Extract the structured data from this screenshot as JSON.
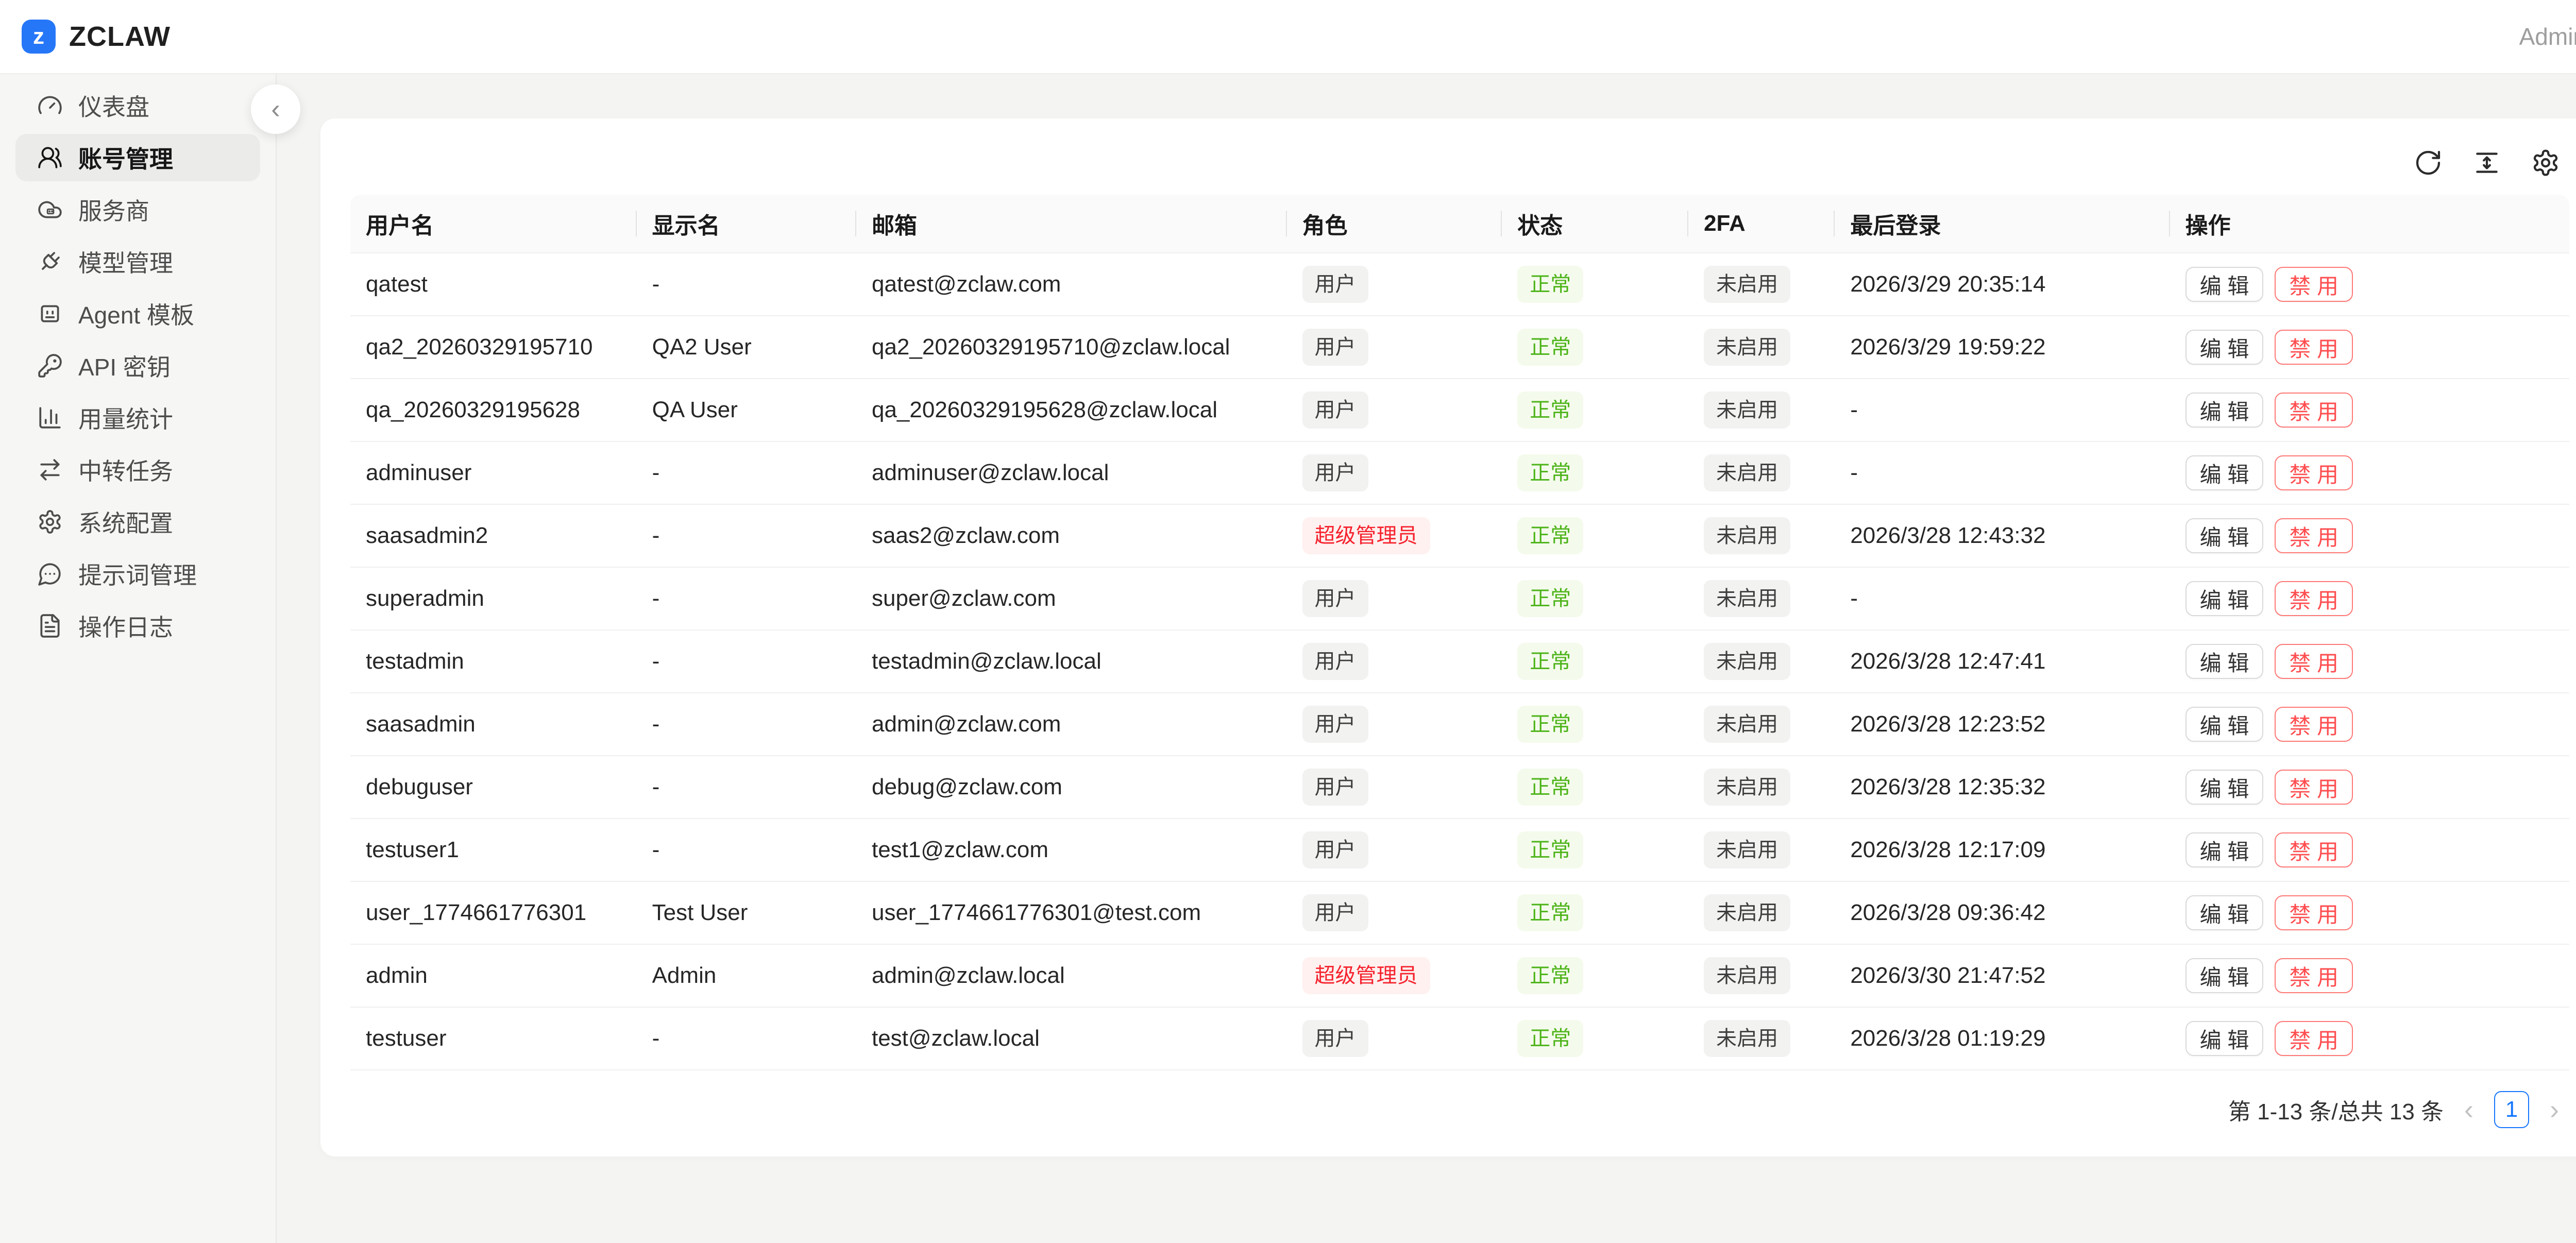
{
  "topbar": {
    "logo_letter": "z",
    "brand": "ZCLAW",
    "user_label": "Admin"
  },
  "sidebar": {
    "collapse_icon": "‹",
    "items": [
      {
        "label": "仪表盘",
        "icon": "gauge-icon",
        "active": false
      },
      {
        "label": "账号管理",
        "icon": "users-icon",
        "active": true
      },
      {
        "label": "服务商",
        "icon": "cloud-icon",
        "active": false
      },
      {
        "label": "模型管理",
        "icon": "plug-icon",
        "active": false
      },
      {
        "label": "Agent 模板",
        "icon": "bot-icon",
        "active": false
      },
      {
        "label": "API 密钥",
        "icon": "key-icon",
        "active": false
      },
      {
        "label": "用量统计",
        "icon": "chart-icon",
        "active": false
      },
      {
        "label": "中转任务",
        "icon": "swap-icon",
        "active": false
      },
      {
        "label": "系统配置",
        "icon": "gear-icon",
        "active": false
      },
      {
        "label": "提示词管理",
        "icon": "message-icon",
        "active": false
      },
      {
        "label": "操作日志",
        "icon": "file-text-icon",
        "active": false
      }
    ]
  },
  "toolbar": {
    "icons": [
      "refresh-icon",
      "row-height-icon",
      "settings-icon"
    ]
  },
  "table": {
    "columns": [
      "用户名",
      "显示名",
      "邮箱",
      "角色",
      "状态",
      "2FA",
      "最后登录",
      "操作"
    ],
    "actions": {
      "edit": "编 辑",
      "disable": "禁 用"
    },
    "rows": [
      {
        "username": "qatest",
        "display_name": "-",
        "email": "qatest@zclaw.com",
        "role": "用户",
        "role_variant": "default",
        "status": "正常",
        "twofa": "未启用",
        "last_login": "2026/3/29 20:35:14"
      },
      {
        "username": "qa2_20260329195710",
        "display_name": "QA2 User",
        "email": "qa2_20260329195710@zclaw.local",
        "role": "用户",
        "role_variant": "default",
        "status": "正常",
        "twofa": "未启用",
        "last_login": "2026/3/29 19:59:22"
      },
      {
        "username": "qa_20260329195628",
        "display_name": "QA User",
        "email": "qa_20260329195628@zclaw.local",
        "role": "用户",
        "role_variant": "default",
        "status": "正常",
        "twofa": "未启用",
        "last_login": "-"
      },
      {
        "username": "adminuser",
        "display_name": "-",
        "email": "adminuser@zclaw.local",
        "role": "用户",
        "role_variant": "default",
        "status": "正常",
        "twofa": "未启用",
        "last_login": "-"
      },
      {
        "username": "saasadmin2",
        "display_name": "-",
        "email": "saas2@zclaw.com",
        "role": "超级管理员",
        "role_variant": "danger",
        "status": "正常",
        "twofa": "未启用",
        "last_login": "2026/3/28 12:43:32"
      },
      {
        "username": "superadmin",
        "display_name": "-",
        "email": "super@zclaw.com",
        "role": "用户",
        "role_variant": "default",
        "status": "正常",
        "twofa": "未启用",
        "last_login": "-"
      },
      {
        "username": "testadmin",
        "display_name": "-",
        "email": "testadmin@zclaw.local",
        "role": "用户",
        "role_variant": "default",
        "status": "正常",
        "twofa": "未启用",
        "last_login": "2026/3/28 12:47:41"
      },
      {
        "username": "saasadmin",
        "display_name": "-",
        "email": "admin@zclaw.com",
        "role": "用户",
        "role_variant": "default",
        "status": "正常",
        "twofa": "未启用",
        "last_login": "2026/3/28 12:23:52"
      },
      {
        "username": "debuguser",
        "display_name": "-",
        "email": "debug@zclaw.com",
        "role": "用户",
        "role_variant": "default",
        "status": "正常",
        "twofa": "未启用",
        "last_login": "2026/3/28 12:35:32"
      },
      {
        "username": "testuser1",
        "display_name": "-",
        "email": "test1@zclaw.com",
        "role": "用户",
        "role_variant": "default",
        "status": "正常",
        "twofa": "未启用",
        "last_login": "2026/3/28 12:17:09"
      },
      {
        "username": "user_1774661776301",
        "display_name": "Test User",
        "email": "user_1774661776301@test.com",
        "role": "用户",
        "role_variant": "default",
        "status": "正常",
        "twofa": "未启用",
        "last_login": "2026/3/28 09:36:42"
      },
      {
        "username": "admin",
        "display_name": "Admin",
        "email": "admin@zclaw.local",
        "role": "超级管理员",
        "role_variant": "danger",
        "status": "正常",
        "twofa": "未启用",
        "last_login": "2026/3/30 21:47:52"
      },
      {
        "username": "testuser",
        "display_name": "-",
        "email": "test@zclaw.local",
        "role": "用户",
        "role_variant": "default",
        "status": "正常",
        "twofa": "未启用",
        "last_login": "2026/3/28 01:19:29"
      }
    ]
  },
  "pagination": {
    "summary": "第 1-13 条/总共 13 条",
    "prev": "‹",
    "page": "1",
    "next": "›"
  },
  "colors": {
    "accent_blue": "#1677ff",
    "logo_blue": "#2677f8",
    "success_green": "#52c41a",
    "danger_red": "#f5222d"
  }
}
